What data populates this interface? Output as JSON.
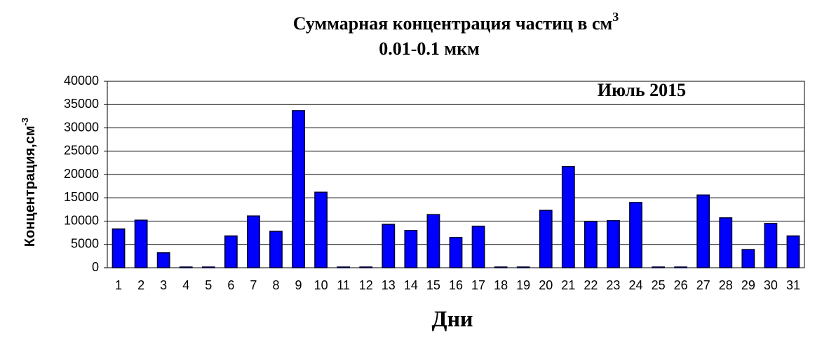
{
  "chart_data": {
    "type": "bar",
    "title": "Суммарная концентрация  частиц  в см",
    "title_superscript": "3",
    "subtitle": "0.01-0.1 мкм",
    "annotation": "Июль 2015",
    "xlabel": "Дни",
    "ylabel": "Концентрация,см",
    "ylabel_superscript": "-3",
    "categories": [
      "1",
      "2",
      "3",
      "4",
      "5",
      "6",
      "7",
      "8",
      "9",
      "10",
      "11",
      "12",
      "13",
      "14",
      "15",
      "16",
      "17",
      "18",
      "19",
      "20",
      "21",
      "22",
      "23",
      "24",
      "25",
      "26",
      "27",
      "28",
      "29",
      "30",
      "31"
    ],
    "values": [
      8300,
      10200,
      3200,
      0,
      0,
      6800,
      11100,
      7800,
      33700,
      16200,
      0,
      0,
      9300,
      8000,
      11400,
      6500,
      8900,
      0,
      0,
      12300,
      21700,
      9900,
      10100,
      14000,
      0,
      0,
      15600,
      10700,
      3900,
      9500,
      6800
    ],
    "color": "#0000ff",
    "ylim": [
      0,
      40000
    ],
    "yticks": [
      0,
      5000,
      10000,
      15000,
      20000,
      25000,
      30000,
      35000,
      40000
    ],
    "grid": true
  }
}
